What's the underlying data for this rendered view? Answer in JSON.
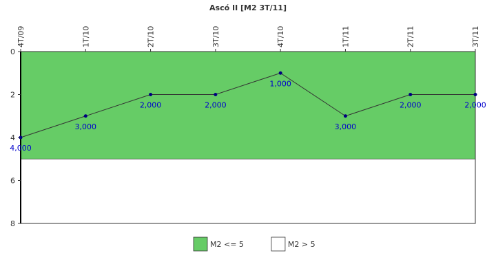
{
  "chart_data": {
    "type": "line",
    "title": "Ascó II [M2 3T/11]",
    "categories": [
      "4T/09",
      "1T/10",
      "2T/10",
      "3T/10",
      "4T/10",
      "1T/11",
      "2T/11",
      "3T/11"
    ],
    "values": [
      4,
      3,
      2,
      2,
      1,
      3,
      2,
      2
    ],
    "value_labels": [
      "4,000",
      "3,000",
      "2,000",
      "2,000",
      "1,000",
      "3,000",
      "2,000",
      "2,000"
    ],
    "line_color": "#333333",
    "marker_color": "#000080",
    "label_color": "#0000cc",
    "ylim": [
      0,
      8
    ],
    "yticks": [
      0,
      2,
      4,
      6,
      8
    ],
    "y_inverted": true,
    "bands": [
      {
        "name": "M2 <= 5",
        "color": "#66cc66",
        "from": 0,
        "to": 5
      },
      {
        "name": "M2 > 5",
        "color": "#ffffff",
        "from": 5,
        "to": 8
      }
    ]
  }
}
